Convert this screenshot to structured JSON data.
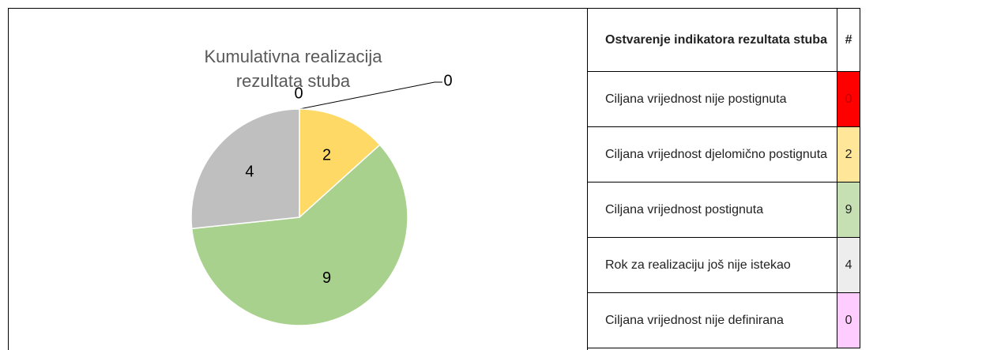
{
  "chart_data": {
    "type": "pie",
    "title": "Kumulativna realizacija rezultata stuba",
    "values": [
      0,
      2,
      9,
      4,
      0
    ],
    "colors": [
      "#ff0000",
      "#ffd966",
      "#a9d18e",
      "#bfbfbf",
      "#ff99ff"
    ]
  },
  "table": {
    "header": [
      "Ostvarenje indikatora rezultata stuba",
      "#"
    ],
    "rows": [
      [
        "Ciljana vrijednost nije postignuta",
        "0"
      ],
      [
        "Ciljana vrijednost djelomično postignuta",
        "2"
      ],
      [
        "Ciljana vrijednost postignuta",
        "9"
      ],
      [
        "Rok za realizaciju još nije istekao",
        "4"
      ],
      [
        "Ciljana vrijednost nije definirana",
        "0"
      ]
    ],
    "cell_colors": [
      "#ff0000",
      "#ffe699",
      "#c6e0b4",
      "#ededed",
      "#ffccff"
    ]
  }
}
